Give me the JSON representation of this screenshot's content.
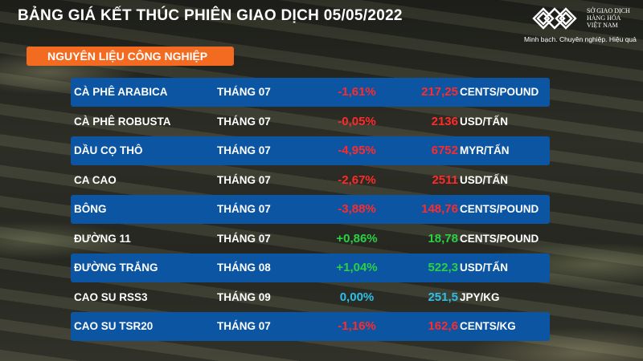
{
  "header": {
    "title": "BẢNG GIÁ KẾT THÚC PHIÊN GIAO DỊCH 05/05/2022"
  },
  "logo": {
    "line1": "SỞ GIAO DỊCH",
    "line2": "HÀNG HÓA",
    "line3": "VIỆT NAM",
    "slogan": "Minh bạch. Chuyên nghiệp. Hiệu quả"
  },
  "category": "NGUYÊN LIỆU CÔNG NGHIỆP",
  "colors": {
    "band": "#0b55a2",
    "category": "#f26b21",
    "down": "#ff2a2a",
    "up": "#2bd144",
    "flat": "#2bc0ea"
  },
  "rows": [
    {
      "name": "CÀ PHÊ ARABICA",
      "month": "THÁNG 07",
      "change": "-1,61%",
      "price": "217,25",
      "unit": "CENTS/POUND",
      "trend": "red"
    },
    {
      "name": "CÀ PHÊ ROBUSTA",
      "month": "THÁNG 07",
      "change": "-0,05%",
      "price": "2136",
      "unit": "USD/TẤN",
      "trend": "red"
    },
    {
      "name": "DẦU CỌ THÔ",
      "month": "THÁNG 07",
      "change": "-4,95%",
      "price": "6752",
      "unit": "MYR/TẤN",
      "trend": "red"
    },
    {
      "name": "CA CAO",
      "month": "THÁNG 07",
      "change": "-2,67%",
      "price": "2511",
      "unit": "USD/TẤN",
      "trend": "red"
    },
    {
      "name": "BÔNG",
      "month": "THÁNG 07",
      "change": "-3,88%",
      "price": "148,76",
      "unit": "CENTS/POUND",
      "trend": "red"
    },
    {
      "name": "ĐƯỜNG 11",
      "month": "THÁNG 07",
      "change": "+0,86%",
      "price": "18,78",
      "unit": "CENTS/POUND",
      "trend": "green"
    },
    {
      "name": "ĐƯỜNG TRẮNG",
      "month": "THÁNG 08",
      "change": "+1,04%",
      "price": "522,3",
      "unit": "USD/TẤN",
      "trend": "green"
    },
    {
      "name": "CAO SU RSS3",
      "month": "THÁNG 09",
      "change": "0,00%",
      "price": "251,5",
      "unit": "JPY/KG",
      "trend": "blue"
    },
    {
      "name": "CAO SU TSR20",
      "month": "THÁNG 07",
      "change": "-1,16%",
      "price": "162,6",
      "unit": "CENTS/KG",
      "trend": "red"
    }
  ]
}
